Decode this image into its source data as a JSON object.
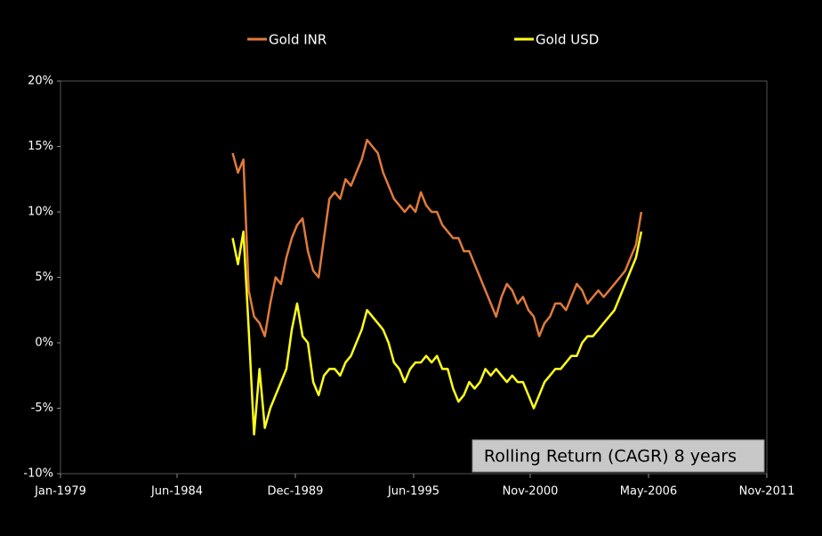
{
  "chart_data": {
    "type": "line",
    "annotation": "Rolling Return (CAGR) 8 years",
    "x": [
      "1987-01",
      "1987-04",
      "1987-07",
      "1987-10",
      "1988-01",
      "1988-04",
      "1988-07",
      "1988-10",
      "1989-01",
      "1989-04",
      "1989-07",
      "1989-10",
      "1990-01",
      "1990-04",
      "1990-07",
      "1990-10",
      "1991-01",
      "1991-04",
      "1991-07",
      "1991-10",
      "1992-01",
      "1992-04",
      "1992-07",
      "1992-10",
      "1993-01",
      "1993-04",
      "1993-07",
      "1993-10",
      "1994-01",
      "1994-04",
      "1994-07",
      "1994-10",
      "1995-01",
      "1995-04",
      "1995-07",
      "1995-10",
      "1996-01",
      "1996-04",
      "1996-07",
      "1996-10",
      "1997-01",
      "1997-04",
      "1997-07",
      "1997-10",
      "1998-01",
      "1998-04",
      "1998-07",
      "1998-10",
      "1999-01",
      "1999-04",
      "1999-07",
      "1999-10",
      "2000-01",
      "2000-04",
      "2000-07",
      "2000-10",
      "2001-01",
      "2001-04",
      "2001-07",
      "2001-10",
      "2002-01",
      "2002-04",
      "2002-07",
      "2002-10",
      "2003-01",
      "2003-04",
      "2003-07",
      "2003-10",
      "2004-01",
      "2004-04",
      "2004-07",
      "2004-10",
      "2005-01",
      "2005-04",
      "2005-07",
      "2005-10",
      "2006-01"
    ],
    "series": [
      {
        "name": "Gold INR",
        "color": "#e07a3a",
        "values": [
          14.5,
          13,
          14,
          4,
          2,
          1.5,
          0.5,
          3,
          5,
          4.5,
          6.5,
          8,
          9,
          9.5,
          7,
          5.5,
          5,
          8,
          11,
          11.5,
          11,
          12.5,
          12,
          13,
          14,
          15.5,
          15,
          14.5,
          13,
          12,
          11,
          10.5,
          10,
          10.5,
          10,
          11.5,
          10.5,
          10,
          10,
          9,
          8.5,
          8,
          8,
          7,
          7,
          6,
          5,
          4,
          3,
          2,
          3.5,
          4.5,
          4,
          3,
          3.5,
          2.5,
          2,
          0.5,
          1.5,
          2,
          3,
          3,
          2.5,
          3.5,
          4.5,
          4,
          3,
          3.5,
          4,
          3.5,
          4,
          4.5,
          5,
          5.5,
          6.5,
          7.5,
          10
        ]
      },
      {
        "name": "Gold USD",
        "color": "#ffff1a",
        "values": [
          8,
          6,
          8.5,
          1,
          -7,
          -2,
          -6.5,
          -5,
          -4,
          -3,
          -2,
          1,
          3,
          0.5,
          0,
          -3,
          -4,
          -2.5,
          -2,
          -2,
          -2.5,
          -1.5,
          -1,
          0,
          1,
          2.5,
          2,
          1.5,
          1,
          0,
          -1.5,
          -2,
          -3,
          -2,
          -1.5,
          -1.5,
          -1,
          -1.5,
          -1,
          -2,
          -2,
          -3.5,
          -4.5,
          -4,
          -3,
          -3.5,
          -3,
          -2,
          -2.5,
          -2,
          -2.5,
          -3,
          -2.5,
          -3,
          -3,
          -4,
          -5,
          -4,
          -3,
          -2.5,
          -2,
          -2,
          -1.5,
          -1,
          -1,
          0,
          0.5,
          0.5,
          1,
          1.5,
          2,
          2.5,
          3.5,
          4.5,
          5.5,
          6.5,
          8.5
        ]
      }
    ],
    "xlim": [
      "1979-01",
      "2011-11"
    ],
    "xticks": [
      {
        "value": "1979-01",
        "label": "Jan-1979"
      },
      {
        "value": "1984-06",
        "label": "Jun-1984"
      },
      {
        "value": "1989-12",
        "label": "Dec-1989"
      },
      {
        "value": "1995-06",
        "label": "Jun-1995"
      },
      {
        "value": "2000-11",
        "label": "Nov-2000"
      },
      {
        "value": "2006-05",
        "label": "May-2006"
      },
      {
        "value": "2011-11",
        "label": "Nov-2011"
      }
    ],
    "ylim": [
      -10,
      20
    ],
    "yticks": [
      {
        "value": -10,
        "label": "-10%"
      },
      {
        "value": -5,
        "label": "-5%"
      },
      {
        "value": 0,
        "label": "0%"
      },
      {
        "value": 5,
        "label": "5%"
      },
      {
        "value": 10,
        "label": "10%"
      },
      {
        "value": 15,
        "label": "15%"
      },
      {
        "value": 20,
        "label": "20%"
      }
    ],
    "legend": "top"
  }
}
